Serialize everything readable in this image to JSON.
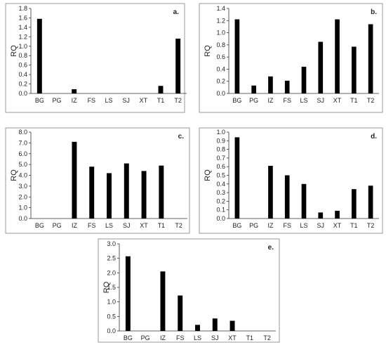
{
  "chart_data": [
    {
      "type": "bar",
      "panel_label": "a.",
      "ylabel": "RQ",
      "categories": [
        "BG",
        "PG",
        "IZ",
        "FS",
        "LS",
        "SJ",
        "XT",
        "T1",
        "T2"
      ],
      "values": [
        1.58,
        0,
        0.09,
        0,
        0,
        0,
        0,
        0.16,
        1.16
      ],
      "ylim": [
        0,
        1.8
      ],
      "yticks": [
        "0.0",
        "0.2",
        "0.4",
        "0.6",
        "0.8",
        "1.0",
        "1.2",
        "1.4",
        "1.6",
        "1.8"
      ],
      "bar_color": "#000000",
      "grid": false
    },
    {
      "type": "bar",
      "panel_label": "b.",
      "ylabel": "RQ",
      "categories": [
        "BG",
        "PG",
        "IZ",
        "FS",
        "LS",
        "SJ",
        "XT",
        "T1",
        "T2"
      ],
      "values": [
        1.22,
        0.13,
        0.28,
        0.21,
        0.44,
        0.85,
        1.22,
        0.77,
        1.14
      ],
      "ylim": [
        0,
        1.4
      ],
      "yticks": [
        "0.0",
        "0.2",
        "0.4",
        "0.6",
        "0.8",
        "1.0",
        "1.2",
        "1.4"
      ],
      "bar_color": "#000000",
      "grid": false
    },
    {
      "type": "bar",
      "panel_label": "c.",
      "ylabel": "RQ",
      "categories": [
        "BG",
        "PG",
        "IZ",
        "FS",
        "LS",
        "SJ",
        "XT",
        "T1",
        "T2"
      ],
      "values": [
        0,
        0,
        7.1,
        4.8,
        4.2,
        5.1,
        4.4,
        4.9,
        0
      ],
      "ylim": [
        0,
        8.0
      ],
      "yticks": [
        "0.0",
        "1.0",
        "2.0",
        "3.0",
        "4.0",
        "5.0",
        "6.0",
        "7.0",
        "8.0"
      ],
      "bar_color": "#000000",
      "grid": false
    },
    {
      "type": "bar",
      "panel_label": "d.",
      "ylabel": "RQ",
      "categories": [
        "BG",
        "PG",
        "IZ",
        "FS",
        "LS",
        "SJ",
        "XT",
        "T1",
        "T2"
      ],
      "values": [
        0.94,
        0,
        0.61,
        0.5,
        0.4,
        0.07,
        0.09,
        0.34,
        0.38
      ],
      "ylim": [
        0,
        1.0
      ],
      "yticks": [
        "0.0",
        "0.1",
        "0.2",
        "0.3",
        "0.4",
        "0.5",
        "0.6",
        "0.7",
        "0.8",
        "0.9",
        "1.0"
      ],
      "bar_color": "#000000",
      "grid": false
    },
    {
      "type": "bar",
      "panel_label": "e.",
      "ylabel": "RQ",
      "categories": [
        "BG",
        "PG",
        "IZ",
        "FS",
        "LS",
        "SJ",
        "XT",
        "T1",
        "T2"
      ],
      "values": [
        2.57,
        0,
        2.05,
        1.22,
        0.21,
        0.43,
        0.35,
        0,
        0
      ],
      "ylim": [
        0,
        3.0
      ],
      "yticks": [
        "0.0",
        "0.5",
        "1.0",
        "1.5",
        "2.0",
        "2.5",
        "3.0"
      ],
      "bar_color": "#000000",
      "grid": false
    }
  ]
}
